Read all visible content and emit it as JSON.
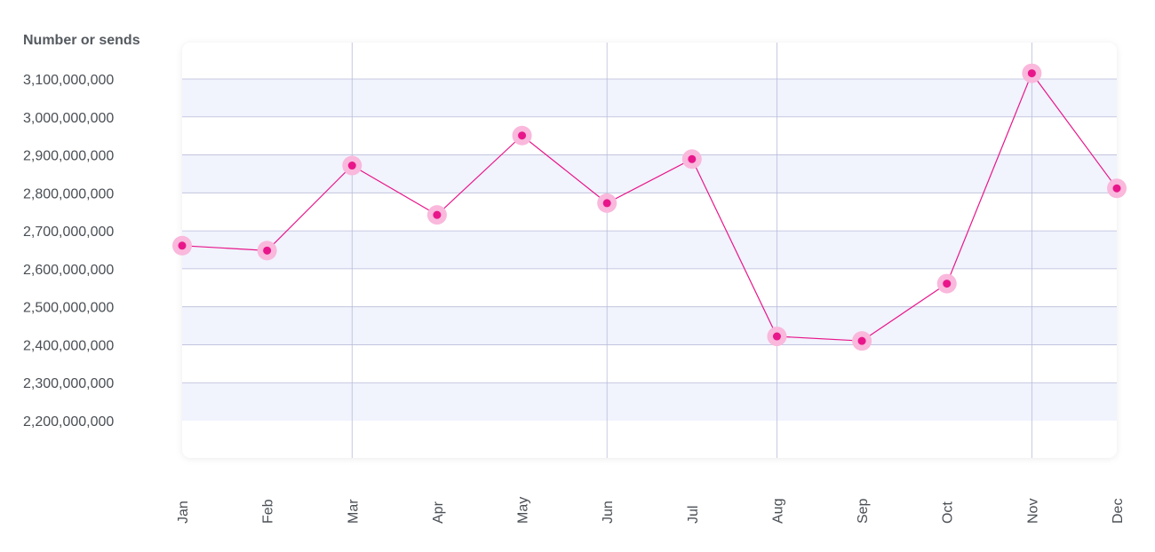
{
  "chart_data": {
    "type": "line",
    "title": "",
    "xlabel": "",
    "ylabel": "Number or sends",
    "categories": [
      "Jan",
      "Feb",
      "Mar",
      "Apr",
      "May",
      "Jun",
      "Jul",
      "Aug",
      "Sep",
      "Oct",
      "Nov",
      "Dec"
    ],
    "series": [
      {
        "values": [
          2661000000,
          2648000000,
          2872000000,
          2742000000,
          2951000000,
          2773000000,
          2889000000,
          2422000000,
          2410000000,
          2561000000,
          3115000000,
          2812000000
        ]
      }
    ],
    "y_ticks": [
      2200000000,
      2300000000,
      2400000000,
      2500000000,
      2600000000,
      2700000000,
      2800000000,
      2900000000,
      3000000000,
      3100000000
    ],
    "y_tick_labels": [
      "2,200,000,000",
      "2,300,000,000",
      "2,400,000,000",
      "2,500,000,000",
      "2,600,000,000",
      "2,700,000,000",
      "2,800,000,000",
      "2,900,000,000",
      "3,000,000,000",
      "3,100,000,000"
    ],
    "ylim": [
      2100000000,
      3200000000
    ],
    "vertical_grid_at": [
      "Mar",
      "Jun",
      "Aug",
      "Nov"
    ],
    "grid": true,
    "legend": "none",
    "colors": {
      "line": "#e8168a",
      "point": "#e8168a",
      "point_halo": "#f9b8dc",
      "band": "#f1f3fd",
      "grid": "#b9bdd9",
      "plot_bg": "#ffffff"
    }
  }
}
